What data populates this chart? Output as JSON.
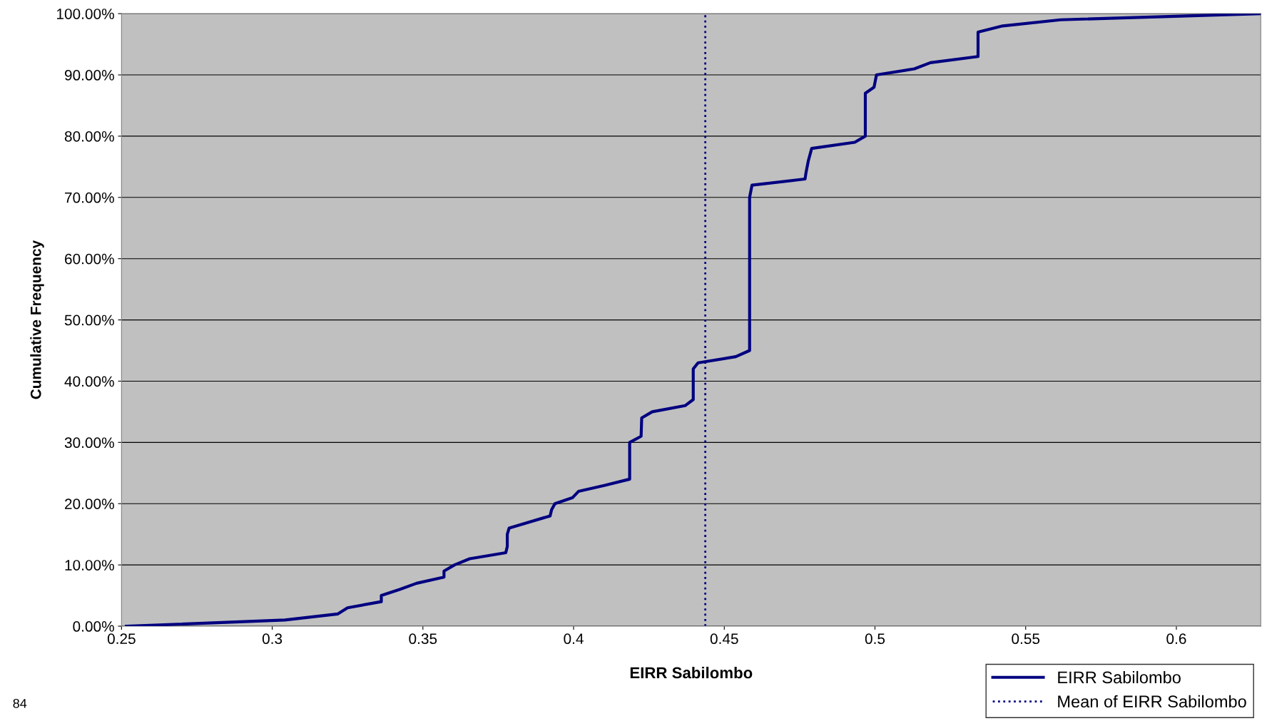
{
  "chart_data": {
    "type": "line",
    "xlabel": "EIRR Sabilombo",
    "ylabel": "Cumulative Frequency",
    "xlim": [
      0.25,
      0.628
    ],
    "xticks": [
      0.25,
      0.3,
      0.35,
      0.4,
      0.45,
      0.5,
      0.55,
      0.6
    ],
    "ylim": [
      0,
      100
    ],
    "yticks": [
      {
        "value": 0,
        "label": "0.00%"
      },
      {
        "value": 10,
        "label": "10.00%"
      },
      {
        "value": 20,
        "label": "20.00%"
      },
      {
        "value": 30,
        "label": "30.00%"
      },
      {
        "value": 40,
        "label": "40.00%"
      },
      {
        "value": 50,
        "label": "50.00%"
      },
      {
        "value": 60,
        "label": "60.00%"
      },
      {
        "value": 70,
        "label": "70.00%"
      },
      {
        "value": 80,
        "label": "80.00%"
      },
      {
        "value": 90,
        "label": "90.00%"
      },
      {
        "value": 100,
        "label": "100.00%"
      }
    ],
    "grid": "y",
    "legend": "bottom right",
    "line_style": "solid",
    "marker": "none",
    "series": [
      {
        "name": "EIRR Sabilombo",
        "color": "#000080",
        "x": [
          0.2516,
          0.3042,
          0.3218,
          0.325,
          0.3362,
          0.3362,
          0.3423,
          0.3479,
          0.357,
          0.357,
          0.3605,
          0.3655,
          0.3775,
          0.378,
          0.378,
          0.3786,
          0.3922,
          0.3927,
          0.3938,
          0.3997,
          0.4016,
          0.4104,
          0.4186,
          0.4186,
          0.4224,
          0.4226,
          0.4261,
          0.437,
          0.4397,
          0.4397,
          0.4413,
          0.4538,
          0.4584,
          0.4584,
          0.4592,
          0.4768,
          0.4771,
          0.4779,
          0.479,
          0.4933,
          0.4968,
          0.4968,
          0.4997,
          0.5005,
          0.5131,
          0.5184,
          0.5342,
          0.5342,
          0.5424,
          0.5616,
          0.628
        ],
        "values": [
          0,
          1,
          2,
          3,
          4,
          5,
          6,
          7,
          8,
          9,
          10,
          11,
          12,
          13,
          15,
          16,
          18,
          19,
          20,
          21,
          22,
          23,
          24,
          30,
          31,
          34,
          35,
          36,
          37,
          42,
          43,
          44,
          45,
          70,
          72,
          73,
          74,
          76,
          78,
          79,
          80,
          87,
          88,
          90,
          91,
          92,
          93,
          97,
          98,
          99,
          100
        ]
      }
    ],
    "ref_lines": [
      {
        "axis": "x",
        "value": 0.4437,
        "label": "Mean of EIRR Sabilombo",
        "color": "#000080",
        "line_style": "dotted"
      }
    ],
    "annotations": [
      "84"
    ]
  }
}
